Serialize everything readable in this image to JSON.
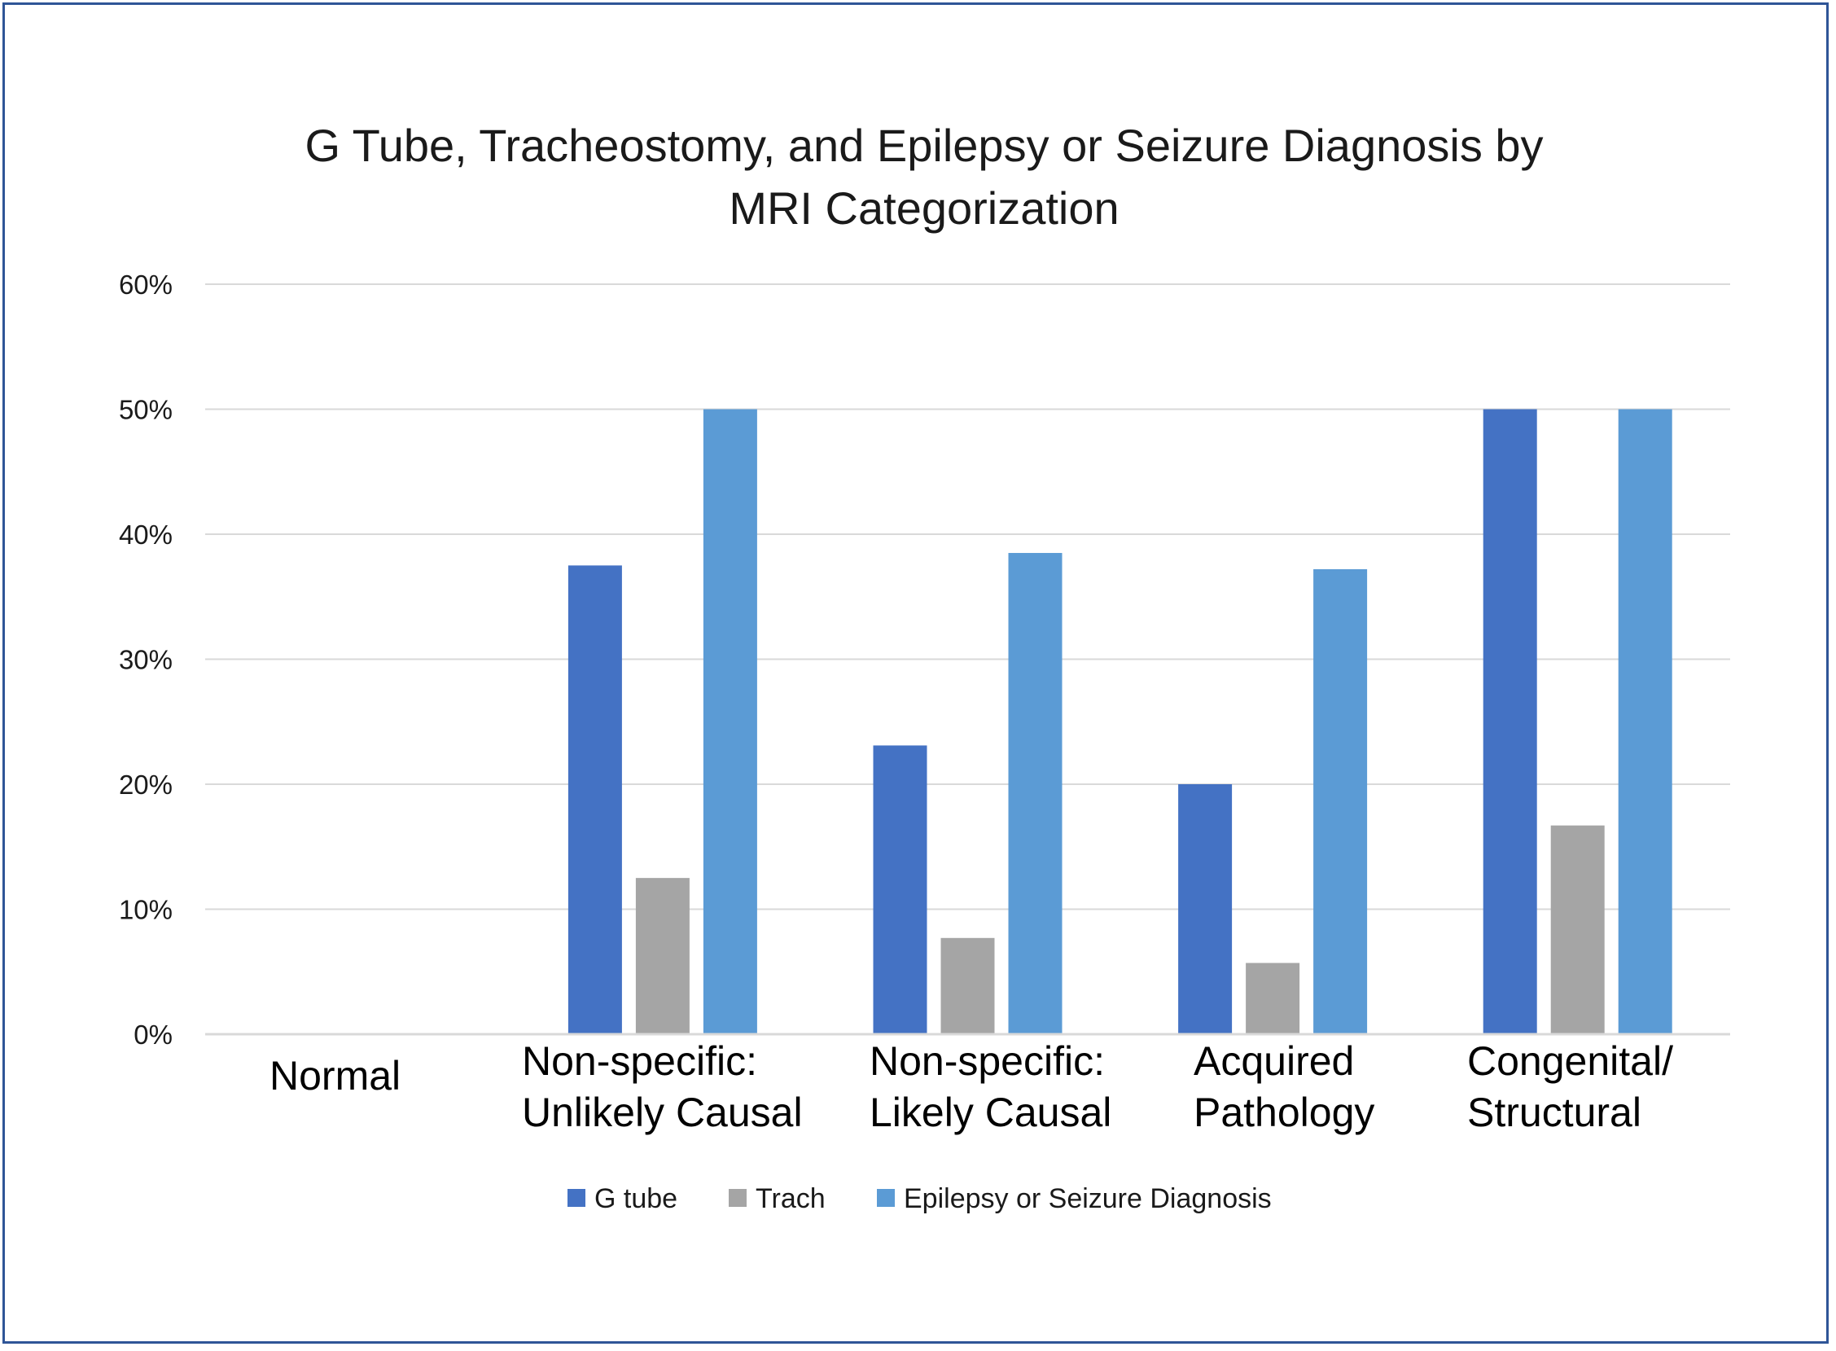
{
  "chart_data": {
    "type": "bar",
    "title": "G Tube, Tracheostomy, and Epilepsy or Seizure Diagnosis by MRI Categorization",
    "title_lines": [
      "G Tube, Tracheostomy, and Epilepsy or Seizure Diagnosis by",
      "MRI Categorization"
    ],
    "xlabel": "",
    "ylabel": "",
    "ylim": [
      0,
      60
    ],
    "y_ticks": [
      "0%",
      "10%",
      "20%",
      "30%",
      "40%",
      "50%",
      "60%"
    ],
    "grid": true,
    "legend_position": "bottom",
    "categories": [
      "Normal",
      "Non-specific: Unlikely Causal",
      "Non-specific: Likely Causal",
      "Acquired Pathology",
      "Congenital/ Structural"
    ],
    "category_lines": [
      [
        "Normal"
      ],
      [
        "Non-specific:",
        "Unlikely Causal"
      ],
      [
        "Non-specific:",
        "Likely Causal"
      ],
      [
        "Acquired",
        "Pathology"
      ],
      [
        "Congenital/",
        "Structural"
      ]
    ],
    "series": [
      {
        "name": "G tube",
        "color": "#4472c4",
        "values": [
          0,
          37.5,
          23.1,
          20.0,
          50.0
        ]
      },
      {
        "name": "Trach",
        "color": "#a5a5a5",
        "values": [
          0,
          12.5,
          7.7,
          5.7,
          16.7
        ]
      },
      {
        "name": "Epilepsy or Seizure Diagnosis",
        "color": "#5b9bd5",
        "values": [
          0,
          50.0,
          38.5,
          37.2,
          50.0
        ]
      }
    ]
  }
}
